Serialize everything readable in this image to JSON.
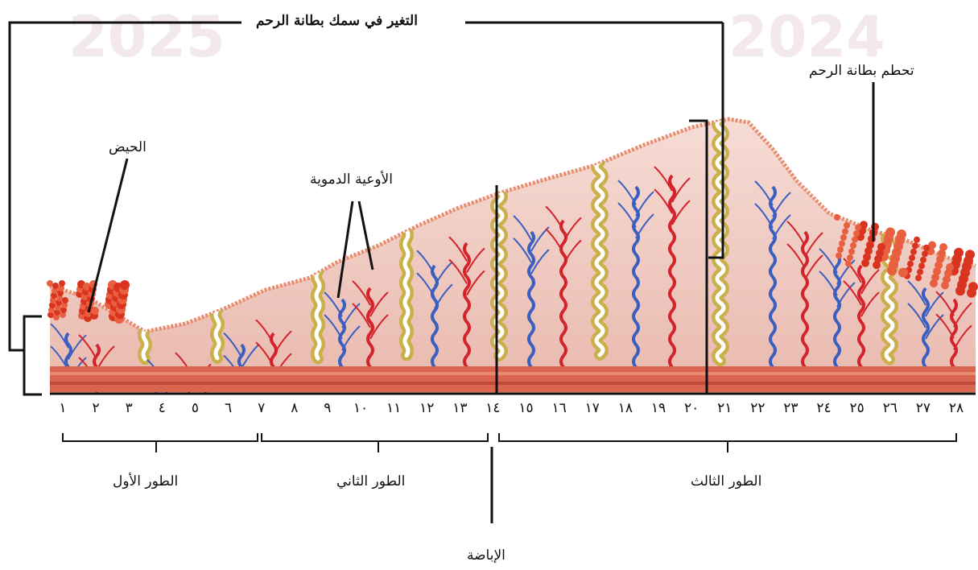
{
  "watermarks": [
    "2025",
    "2024"
  ],
  "title_label": "التغير في سمك بطانة الرحم",
  "labels": {
    "menstruation": "الحيض",
    "blood_vessels": "الأوعية الدموية",
    "lining_breakdown": "تحطم بطانة الرحم",
    "ovulation": "الإباضة"
  },
  "phases": [
    {
      "label": "الطور الأول"
    },
    {
      "label": "الطور الثاني"
    },
    {
      "label": "الطور الثالث"
    }
  ],
  "days": [
    "١",
    "٢",
    "٣",
    "٤",
    "٥",
    "٦",
    "٧",
    "٨",
    "٩",
    "١٠",
    "١١",
    "١٢",
    "١٣",
    "١٤",
    "١٥",
    "١٦",
    "١٧",
    "١٨",
    "١٩",
    "٢٠",
    "٢١",
    "٢٢",
    "٢٣",
    "٢٤",
    "٢٥",
    "٢٦",
    "٢٧",
    "٢٨"
  ],
  "colors": {
    "tissue": "#f2cdc6",
    "tissue_dark": "#e8b2a8",
    "muscle": "#d9654f",
    "epithelium": "#e98c6e",
    "gland": "#c9b04a",
    "artery": "#d4232a",
    "vein": "#3a5fc0",
    "blood": "#d8341f",
    "line": "#111111"
  }
}
